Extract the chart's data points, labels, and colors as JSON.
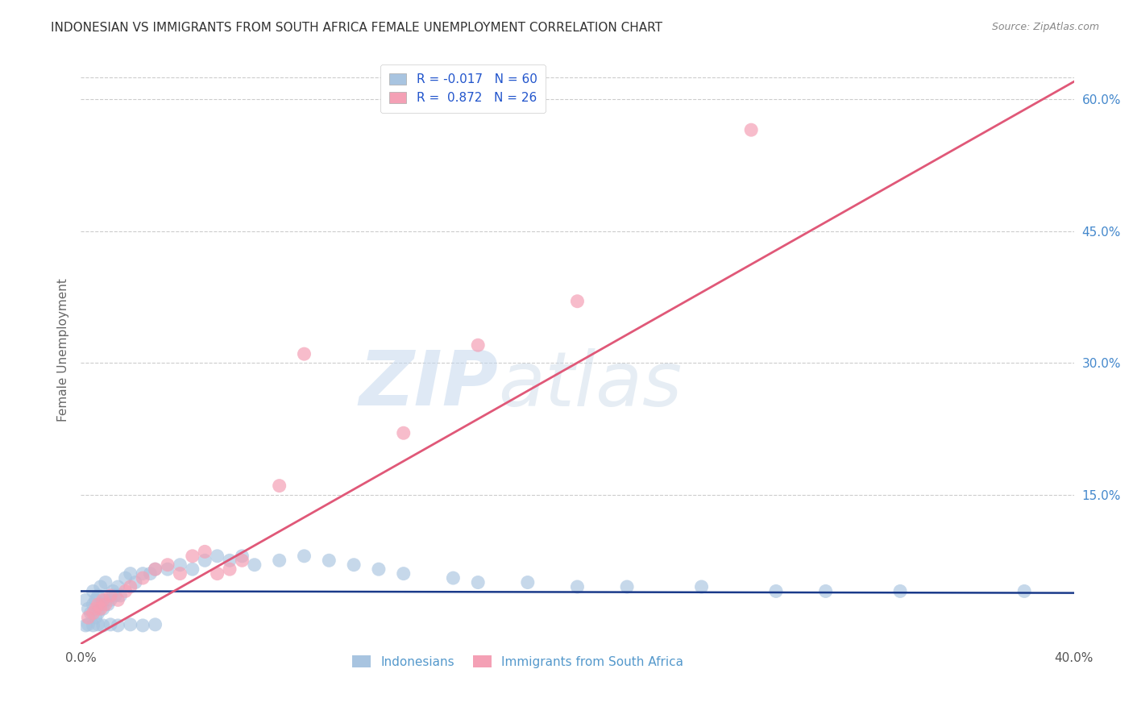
{
  "title": "INDONESIAN VS IMMIGRANTS FROM SOUTH AFRICA FEMALE UNEMPLOYMENT CORRELATION CHART",
  "source": "Source: ZipAtlas.com",
  "ylabel": "Female Unemployment",
  "xlim": [
    0.0,
    0.4
  ],
  "ylim": [
    -0.02,
    0.65
  ],
  "xticks": [
    0.0,
    0.05,
    0.1,
    0.15,
    0.2,
    0.25,
    0.3,
    0.35,
    0.4
  ],
  "ytick_labels_right": [
    "15.0%",
    "30.0%",
    "45.0%",
    "60.0%"
  ],
  "yticks_right": [
    0.15,
    0.3,
    0.45,
    0.6
  ],
  "watermark_zip": "ZIP",
  "watermark_atlas": "atlas",
  "indonesian_R": -0.017,
  "indonesian_N": 60,
  "sa_R": 0.872,
  "sa_N": 26,
  "legend_label_blue": "Indonesians",
  "legend_label_pink": "Immigrants from South Africa",
  "blue_color": "#a8c4e0",
  "blue_line_color": "#1a3a8a",
  "pink_color": "#f4a0b5",
  "pink_line_color": "#e05878",
  "background_color": "#ffffff",
  "grid_color": "#cccccc",
  "title_color": "#333333",
  "source_color": "#888888",
  "blue_scatter_x": [
    0.002,
    0.003,
    0.004,
    0.005,
    0.005,
    0.006,
    0.006,
    0.007,
    0.007,
    0.008,
    0.008,
    0.009,
    0.01,
    0.01,
    0.011,
    0.012,
    0.013,
    0.014,
    0.015,
    0.016,
    0.018,
    0.02,
    0.022,
    0.025,
    0.028,
    0.03,
    0.035,
    0.04,
    0.045,
    0.05,
    0.055,
    0.06,
    0.065,
    0.07,
    0.08,
    0.09,
    0.1,
    0.11,
    0.12,
    0.13,
    0.15,
    0.16,
    0.18,
    0.2,
    0.22,
    0.25,
    0.28,
    0.3,
    0.33,
    0.38,
    0.002,
    0.003,
    0.005,
    0.007,
    0.009,
    0.012,
    0.015,
    0.02,
    0.025,
    0.03
  ],
  "blue_scatter_y": [
    0.03,
    0.02,
    0.015,
    0.025,
    0.04,
    0.01,
    0.03,
    0.015,
    0.035,
    0.025,
    0.045,
    0.02,
    0.03,
    0.05,
    0.025,
    0.03,
    0.04,
    0.035,
    0.045,
    0.035,
    0.055,
    0.06,
    0.05,
    0.06,
    0.06,
    0.065,
    0.065,
    0.07,
    0.065,
    0.075,
    0.08,
    0.075,
    0.08,
    0.07,
    0.075,
    0.08,
    0.075,
    0.07,
    0.065,
    0.06,
    0.055,
    0.05,
    0.05,
    0.045,
    0.045,
    0.045,
    0.04,
    0.04,
    0.04,
    0.04,
    0.001,
    0.002,
    0.001,
    0.002,
    0.001,
    0.002,
    0.001,
    0.002,
    0.001,
    0.002
  ],
  "pink_scatter_x": [
    0.003,
    0.005,
    0.006,
    0.007,
    0.008,
    0.009,
    0.01,
    0.012,
    0.015,
    0.018,
    0.02,
    0.025,
    0.03,
    0.035,
    0.04,
    0.045,
    0.05,
    0.055,
    0.06,
    0.065,
    0.08,
    0.09,
    0.13,
    0.16,
    0.2,
    0.27
  ],
  "pink_scatter_y": [
    0.01,
    0.015,
    0.02,
    0.025,
    0.02,
    0.03,
    0.025,
    0.035,
    0.03,
    0.04,
    0.045,
    0.055,
    0.065,
    0.07,
    0.06,
    0.08,
    0.085,
    0.06,
    0.065,
    0.075,
    0.16,
    0.31,
    0.22,
    0.32,
    0.37,
    0.565
  ],
  "pink_line_x0": 0.0,
  "pink_line_y0": -0.02,
  "pink_line_x1": 0.4,
  "pink_line_y1": 0.62,
  "blue_line_x0": 0.0,
  "blue_line_y0": 0.04,
  "blue_line_x1": 0.4,
  "blue_line_y1": 0.038
}
